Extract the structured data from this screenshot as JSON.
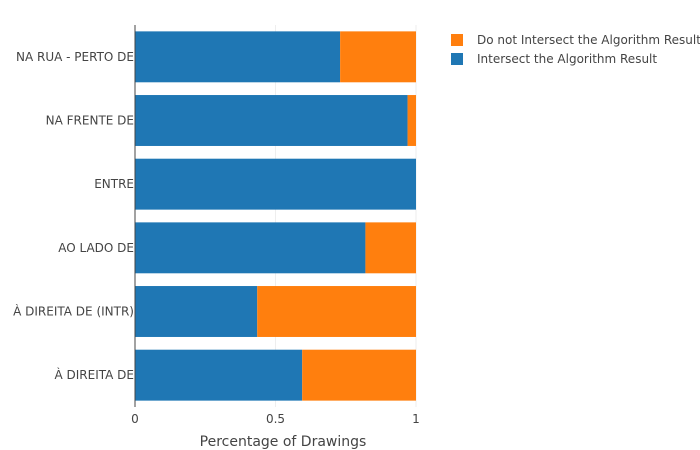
{
  "chart_data": {
    "type": "bar",
    "orientation": "horizontal",
    "stacked": true,
    "categories": [
      "NA RUA - PERTO DE",
      "NA FRENTE DE",
      "ENTRE",
      "AO LADO DE",
      "À DIREITA DE (INTR)",
      "À DIREITA DE"
    ],
    "series": [
      {
        "name": "Intersect the Algorithm Result",
        "color": "#1f77b4",
        "values": [
          0.73,
          0.97,
          1.0,
          0.82,
          0.435,
          0.595
        ]
      },
      {
        "name": "Do not Intersect the Algorithm Result",
        "color": "#ff7f0e",
        "values": [
          0.27,
          0.03,
          0.0,
          0.18,
          0.565,
          0.405
        ]
      }
    ],
    "legend_order": [
      "Do not Intersect the Algorithm Result",
      "Intersect the Algorithm Result"
    ],
    "legend_position": "top-right",
    "xlabel": "Percentage of Drawings",
    "ylabel": "",
    "xlim": [
      0,
      1
    ],
    "xticks": [
      0,
      0.5,
      1
    ],
    "xtick_labels": [
      "0",
      "0.5",
      "1"
    ],
    "grid": true
  }
}
